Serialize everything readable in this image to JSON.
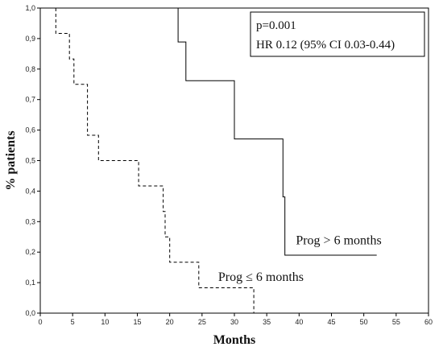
{
  "chart_data": {
    "type": "line",
    "title": "",
    "xlabel": "Months",
    "ylabel": "% patients",
    "xlim": [
      0,
      60
    ],
    "ylim": [
      0,
      1
    ],
    "x_ticks": [
      0,
      5,
      10,
      15,
      20,
      25,
      30,
      35,
      40,
      45,
      50,
      55,
      60
    ],
    "y_ticks": [
      0,
      0.1,
      0.2,
      0.3,
      0.4,
      0.5,
      0.6,
      0.7,
      0.8,
      0.9,
      1.0
    ],
    "x_tick_labels": [
      "0",
      "5",
      "10",
      "15",
      "20",
      "25",
      "30",
      "35",
      "40",
      "45",
      "50",
      "55",
      "60"
    ],
    "y_tick_labels": [
      "0,0",
      "0,1",
      "0,2",
      "0,3",
      "0,4",
      "0,5",
      "0,6",
      "0,7",
      "0,8",
      "0,9",
      "1,0"
    ],
    "grid": false,
    "series": [
      {
        "name": "Prog > 6 months",
        "style": "solid",
        "color": "#000000",
        "x": [
          0,
          21.3,
          21.3,
          22.5,
          22.5,
          30.0,
          30.0,
          37.5,
          37.5,
          37.8,
          37.8,
          52.0
        ],
        "y": [
          1.0,
          1.0,
          0.889,
          0.889,
          0.762,
          0.762,
          0.571,
          0.571,
          0.381,
          0.381,
          0.19,
          0.19
        ]
      },
      {
        "name": "Prog ≤ 6 months",
        "style": "dashed",
        "color": "#000000",
        "x": [
          2.4,
          2.4,
          4.5,
          4.5,
          5.2,
          5.2,
          7.3,
          7.3,
          9.0,
          9.0,
          15.2,
          15.2,
          19.0,
          19.0,
          19.3,
          19.3,
          20.0,
          20.0,
          24.5,
          24.5,
          33.0,
          33.0
        ],
        "y": [
          1.0,
          0.917,
          0.917,
          0.833,
          0.833,
          0.75,
          0.75,
          0.583,
          0.583,
          0.5,
          0.5,
          0.417,
          0.417,
          0.333,
          0.333,
          0.25,
          0.25,
          0.167,
          0.167,
          0.083,
          0.083,
          0.0
        ]
      }
    ],
    "annotations": [
      {
        "text": "Prog > 6 months",
        "series": "Prog > 6 months",
        "x": 39.5,
        "y": 0.225
      },
      {
        "text": "Prog ≤ 6 months",
        "series": "Prog ≤ 6 months",
        "x": 27.5,
        "y": 0.105
      }
    ],
    "stats": {
      "p_value": "p=0.001",
      "hazard_ratio": "HR 0.12 (95% CI 0.03-0.44)",
      "placement": "top-right"
    }
  }
}
